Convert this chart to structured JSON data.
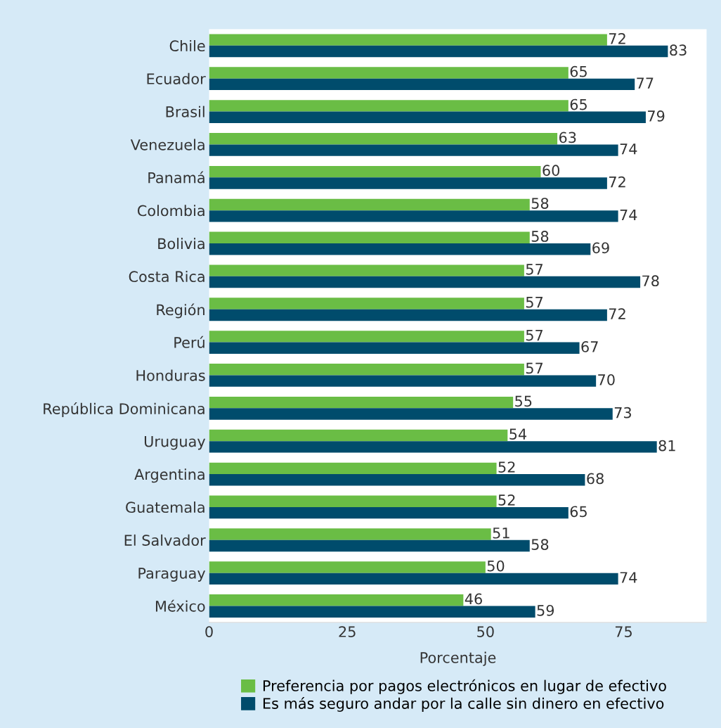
{
  "chart_data": {
    "type": "bar",
    "orientation": "horizontal",
    "xlabel": "Porcentaje",
    "categories": [
      "Chile",
      "Ecuador",
      "Brasil",
      "Venezuela",
      "Panamá",
      "Colombia",
      "Bolivia",
      "Costa Rica",
      "Región",
      "Perú",
      "Honduras",
      "República Dominicana",
      "Uruguay",
      "Argentina",
      "Guatemala",
      "El Salvador",
      "Paraguay",
      "México"
    ],
    "series": [
      {
        "name": "Preferencia por pagos electrónicos en lugar de efectivo",
        "color": "#6abd45",
        "values": [
          72,
          65,
          65,
          63,
          60,
          58,
          58,
          57,
          57,
          57,
          57,
          55,
          54,
          52,
          52,
          51,
          50,
          46
        ]
      },
      {
        "name": "Es más seguro andar por la calle sin dinero en efectivo",
        "color": "#004c6c",
        "values": [
          83,
          77,
          79,
          74,
          72,
          74,
          69,
          78,
          72,
          67,
          70,
          73,
          81,
          68,
          65,
          58,
          74,
          59
        ]
      }
    ],
    "xlim": [
      0,
      90
    ],
    "xticks": [
      0,
      25,
      50,
      75
    ],
    "data_labels": true,
    "grid": false,
    "legend": "bottom"
  }
}
